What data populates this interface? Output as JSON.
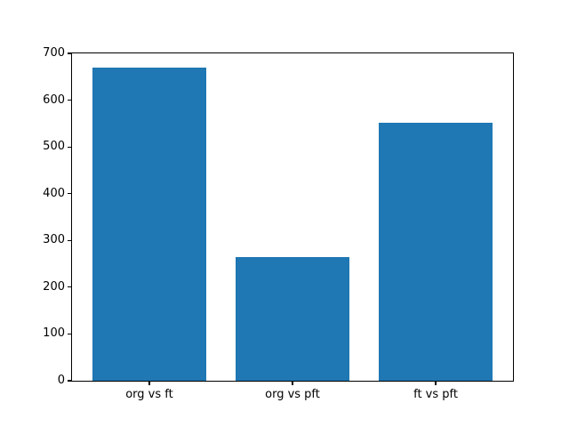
{
  "figure": {
    "background": "#ffffff",
    "axis_color": "#000000",
    "text_color": "#000000"
  },
  "chart_data": {
    "type": "bar",
    "title": "",
    "xlabel": "",
    "ylabel": "",
    "categories": [
      "org vs ft",
      "org vs pft",
      "ft vs pft"
    ],
    "values": [
      670,
      265,
      552
    ],
    "ylim": [
      0,
      700
    ],
    "yticks": [
      0,
      100,
      200,
      300,
      400,
      500,
      600,
      700
    ],
    "bar_color": "#1f77b4",
    "grid": false,
    "legend": "none"
  }
}
